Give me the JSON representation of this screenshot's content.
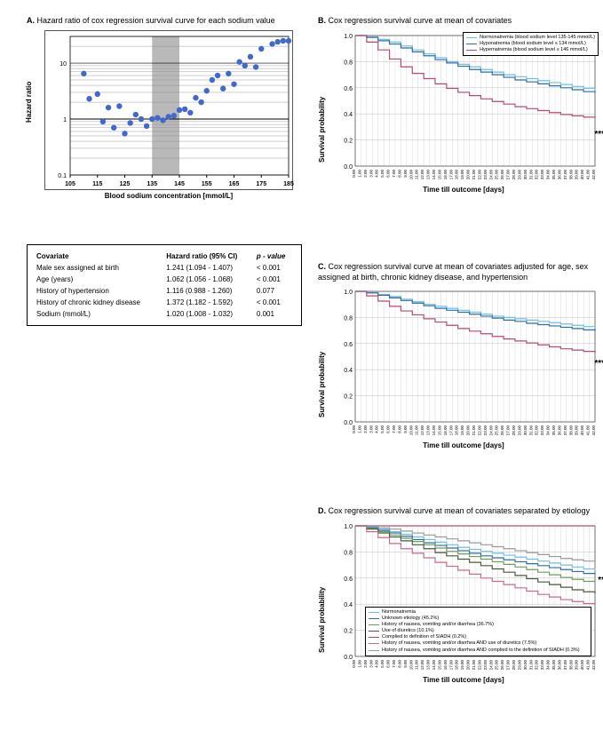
{
  "panelA": {
    "label": "A.",
    "title": "Hazard ratio of cox regression survival curve for each sodium value",
    "xlabel": "Blood sodium concentration [mmol/L]",
    "ylabel": "Hazard ratio",
    "type": "scatter",
    "yscale": "log",
    "xlim": [
      105,
      185
    ],
    "xticks": [
      105,
      115,
      125,
      135,
      145,
      155,
      165,
      175,
      185
    ],
    "yticks": [
      0.1,
      1,
      10
    ],
    "ytick_labels": [
      "0.1",
      "1",
      "10"
    ],
    "y_minor_gridlines": [
      0.2,
      0.3,
      0.4,
      0.5,
      0.6,
      0.7,
      0.8,
      0.9,
      2,
      3,
      4,
      5,
      6,
      7,
      8,
      9,
      20,
      30
    ],
    "reference_band": {
      "xmin": 135,
      "xmax": 145,
      "color": "#808080",
      "opacity": 0.55
    },
    "reference_line_y": 1,
    "marker_color": "#4169cb",
    "marker_size": 3.2,
    "grid_color": "#888888",
    "background_color": "#ffffff",
    "points_x": [
      110,
      112,
      115,
      117,
      119,
      121,
      123,
      125,
      127,
      129,
      131,
      133,
      135,
      137,
      139,
      141,
      143,
      145,
      147,
      149,
      151,
      153,
      155,
      157,
      159,
      161,
      163,
      165,
      167,
      169,
      171,
      173,
      175,
      179,
      181,
      183,
      185
    ],
    "points_y": [
      6.5,
      2.3,
      2.8,
      0.9,
      1.6,
      0.7,
      1.7,
      0.55,
      0.85,
      1.2,
      1.0,
      0.75,
      1.0,
      1.05,
      0.95,
      1.1,
      1.15,
      1.45,
      1.5,
      1.3,
      2.4,
      2.0,
      3.2,
      5.0,
      6.0,
      3.5,
      6.5,
      4.2,
      10.5,
      9.0,
      13.0,
      8.5,
      18.0,
      22.0,
      24.0,
      25.0,
      25.0
    ]
  },
  "covariate_table": {
    "columns": [
      "Covariate",
      "Hazard ratio (95% CI)",
      "p - value"
    ],
    "rows": [
      [
        "Male sex assigned at birth",
        "1.241 (1.094 - 1.407)",
        "< 0.001"
      ],
      [
        "Age (years)",
        "1.062 (1.056 - 1.068)",
        "< 0.001"
      ],
      [
        "History of hypertension",
        "1.116 (0.988 - 1.260)",
        "0.077"
      ],
      [
        "History of chronic kidney disease",
        "1.372 (1.182 - 1.592)",
        "< 0.001"
      ],
      [
        "Sodium  (mmol/L)",
        "1.020 (1.008 - 1.032)",
        "0.001"
      ]
    ]
  },
  "panelB": {
    "label": "B.",
    "title": "Cox regression survival curve at mean of covariates",
    "xlabel": "Time till outcome [days]",
    "ylabel": "Survival probability",
    "type": "survival",
    "ylim": [
      0,
      1.0
    ],
    "yticks": [
      0,
      0.2,
      0.4,
      0.6,
      0.8,
      1.0
    ],
    "xlim": [
      0,
      42
    ],
    "xtick_step": 1,
    "grid_color": "#bfbfbf",
    "background_color": "#ffffff",
    "sig": "***",
    "legend": {
      "position": "top-right",
      "items": [
        {
          "label": "Normonatremia (blood sodium level 135-145 mmol/L)",
          "color": "#6fbfe8"
        },
        {
          "label": "Hyponatremia (blood sodium level ≤ 134 mmol/L)",
          "color": "#2e6ea8"
        },
        {
          "label": "Hypernatremia (blood sodium level ≥ 146 mmol/L)",
          "color": "#b84a6a"
        }
      ]
    },
    "series": [
      {
        "color": "#6fbfe8",
        "x": [
          0,
          2,
          4,
          6,
          8,
          10,
          12,
          14,
          16,
          18,
          20,
          22,
          24,
          26,
          28,
          30,
          32,
          34,
          36,
          38,
          40,
          42
        ],
        "y": [
          1.0,
          0.99,
          0.97,
          0.95,
          0.92,
          0.89,
          0.86,
          0.83,
          0.8,
          0.78,
          0.76,
          0.74,
          0.72,
          0.7,
          0.685,
          0.67,
          0.655,
          0.64,
          0.625,
          0.61,
          0.595,
          0.585
        ]
      },
      {
        "color": "#2e6ea8",
        "x": [
          0,
          2,
          4,
          6,
          8,
          10,
          12,
          14,
          16,
          18,
          20,
          22,
          24,
          26,
          28,
          30,
          32,
          34,
          36,
          38,
          40,
          42
        ],
        "y": [
          1.0,
          0.985,
          0.96,
          0.935,
          0.905,
          0.875,
          0.845,
          0.815,
          0.79,
          0.765,
          0.74,
          0.72,
          0.7,
          0.68,
          0.66,
          0.645,
          0.63,
          0.615,
          0.6,
          0.585,
          0.57,
          0.56
        ]
      },
      {
        "color": "#b84a6a",
        "x": [
          0,
          2,
          4,
          6,
          8,
          10,
          12,
          14,
          16,
          18,
          20,
          22,
          24,
          26,
          28,
          30,
          32,
          34,
          36,
          38,
          40,
          42
        ],
        "y": [
          1.0,
          0.95,
          0.89,
          0.82,
          0.76,
          0.71,
          0.67,
          0.63,
          0.595,
          0.565,
          0.54,
          0.515,
          0.495,
          0.475,
          0.455,
          0.44,
          0.425,
          0.41,
          0.395,
          0.385,
          0.375,
          0.365
        ]
      }
    ]
  },
  "panelC": {
    "label": "C.",
    "title": "Cox regression survival curve at mean of covariates adjusted for age, sex assigned at birth, chronic kidney disease, and hypertension",
    "xlabel": "Time till outcome [days]",
    "ylabel": "Survival probability",
    "type": "survival",
    "ylim": [
      0,
      1.0
    ],
    "yticks": [
      0,
      0.2,
      0.4,
      0.6,
      0.8,
      1.0
    ],
    "xlim": [
      0,
      42
    ],
    "xtick_step": 1,
    "grid_color": "#bfbfbf",
    "background_color": "#ffffff",
    "sig": "***",
    "series": [
      {
        "color": "#6fbfe8",
        "x": [
          0,
          2,
          4,
          6,
          8,
          10,
          12,
          14,
          16,
          18,
          20,
          22,
          24,
          26,
          28,
          30,
          32,
          34,
          36,
          38,
          40,
          42
        ],
        "y": [
          1.0,
          0.99,
          0.975,
          0.96,
          0.94,
          0.92,
          0.9,
          0.885,
          0.87,
          0.855,
          0.84,
          0.825,
          0.81,
          0.8,
          0.79,
          0.78,
          0.77,
          0.76,
          0.75,
          0.74,
          0.73,
          0.72
        ]
      },
      {
        "color": "#2e6ea8",
        "x": [
          0,
          2,
          4,
          6,
          8,
          10,
          12,
          14,
          16,
          18,
          20,
          22,
          24,
          26,
          28,
          30,
          32,
          34,
          36,
          38,
          40,
          42
        ],
        "y": [
          1.0,
          0.988,
          0.97,
          0.95,
          0.93,
          0.91,
          0.89,
          0.87,
          0.855,
          0.84,
          0.825,
          0.81,
          0.795,
          0.78,
          0.77,
          0.755,
          0.745,
          0.735,
          0.725,
          0.715,
          0.705,
          0.695
        ]
      },
      {
        "color": "#b84a6a",
        "x": [
          0,
          2,
          4,
          6,
          8,
          10,
          12,
          14,
          16,
          18,
          20,
          22,
          24,
          26,
          28,
          30,
          32,
          34,
          36,
          38,
          40,
          42
        ],
        "y": [
          1.0,
          0.965,
          0.925,
          0.885,
          0.85,
          0.82,
          0.79,
          0.765,
          0.74,
          0.715,
          0.695,
          0.675,
          0.655,
          0.635,
          0.62,
          0.605,
          0.59,
          0.575,
          0.56,
          0.55,
          0.54,
          0.525
        ]
      }
    ]
  },
  "panelD": {
    "label": "D.",
    "title": "Cox regression survival curve at mean of covariates separated by etiology",
    "xlabel": "Time till outcome [days]",
    "ylabel": "Survival probability",
    "type": "survival",
    "ylim": [
      0,
      1.0
    ],
    "yticks": [
      0,
      0.2,
      0.4,
      0.6,
      0.8,
      1.0
    ],
    "xlim": [
      0,
      42
    ],
    "xtick_step": 1,
    "grid_color": "#bfbfbf",
    "background_color": "#ffffff",
    "sig": "**",
    "legend": {
      "position": "bottom-inside",
      "items": [
        {
          "label": "Normonatremia",
          "color": "#6fbfe8"
        },
        {
          "label": "Unknown etiology (45.2%)",
          "color": "#2e6ea8"
        },
        {
          "label": "History of nausea, vomiting and/or diarrhea (36.7%)",
          "color": "#6f9f55"
        },
        {
          "label": "Use of diuretics (10.1%)",
          "color": "#4a5a3a"
        },
        {
          "label": "Complied to definition of SIADH (0.2%)",
          "color": "#c04a6a"
        },
        {
          "label": "History of nausea, vomiting and/or diarrhea AND use of diuretics (7.5%)",
          "color": "#c96a8a"
        },
        {
          "label": "History of nausea, vomiting and/or diarrhea AND complied to the definition of SIADH (0.3%)",
          "color": "#9a9a9a"
        }
      ]
    },
    "series": [
      {
        "color": "#c04a6a",
        "x": [
          0,
          42
        ],
        "y": [
          1.0,
          1.0
        ]
      },
      {
        "color": "#9a9a9a",
        "x": [
          0,
          2,
          4,
          6,
          8,
          10,
          12,
          14,
          16,
          18,
          20,
          22,
          24,
          26,
          28,
          30,
          32,
          34,
          36,
          38,
          40,
          42
        ],
        "y": [
          1.0,
          0.995,
          0.985,
          0.975,
          0.96,
          0.945,
          0.93,
          0.915,
          0.9,
          0.885,
          0.87,
          0.855,
          0.84,
          0.825,
          0.81,
          0.795,
          0.78,
          0.765,
          0.75,
          0.74,
          0.73,
          0.72
        ]
      },
      {
        "color": "#6fbfe8",
        "x": [
          0,
          2,
          4,
          6,
          8,
          10,
          12,
          14,
          16,
          18,
          20,
          22,
          24,
          26,
          28,
          30,
          32,
          34,
          36,
          38,
          40,
          42
        ],
        "y": [
          1.0,
          0.99,
          0.975,
          0.955,
          0.935,
          0.915,
          0.895,
          0.875,
          0.855,
          0.835,
          0.82,
          0.805,
          0.79,
          0.775,
          0.76,
          0.745,
          0.73,
          0.715,
          0.7,
          0.685,
          0.67,
          0.66
        ]
      },
      {
        "color": "#2e6ea8",
        "x": [
          0,
          2,
          4,
          6,
          8,
          10,
          12,
          14,
          16,
          18,
          20,
          22,
          24,
          26,
          28,
          30,
          32,
          34,
          36,
          38,
          40,
          42
        ],
        "y": [
          1.0,
          0.985,
          0.965,
          0.945,
          0.92,
          0.895,
          0.87,
          0.85,
          0.83,
          0.81,
          0.79,
          0.77,
          0.755,
          0.74,
          0.725,
          0.71,
          0.695,
          0.68,
          0.665,
          0.65,
          0.635,
          0.625
        ]
      },
      {
        "color": "#6f9f55",
        "x": [
          0,
          2,
          4,
          6,
          8,
          10,
          12,
          14,
          16,
          18,
          20,
          22,
          24,
          26,
          28,
          30,
          32,
          34,
          36,
          38,
          40,
          42
        ],
        "y": [
          1.0,
          0.98,
          0.955,
          0.93,
          0.905,
          0.88,
          0.855,
          0.83,
          0.805,
          0.785,
          0.765,
          0.745,
          0.725,
          0.705,
          0.685,
          0.665,
          0.645,
          0.625,
          0.605,
          0.59,
          0.575,
          0.56
        ]
      },
      {
        "color": "#4a5a3a",
        "x": [
          0,
          2,
          4,
          6,
          8,
          10,
          12,
          14,
          16,
          18,
          20,
          22,
          24,
          26,
          28,
          30,
          32,
          34,
          36,
          38,
          40,
          42
        ],
        "y": [
          1.0,
          0.975,
          0.945,
          0.915,
          0.885,
          0.855,
          0.825,
          0.795,
          0.77,
          0.745,
          0.72,
          0.695,
          0.67,
          0.645,
          0.62,
          0.595,
          0.57,
          0.55,
          0.53,
          0.51,
          0.495,
          0.48
        ]
      },
      {
        "color": "#c96a8a",
        "x": [
          0,
          2,
          4,
          6,
          8,
          10,
          12,
          14,
          16,
          18,
          20,
          22,
          24,
          26,
          28,
          30,
          32,
          34,
          36,
          38,
          40,
          42
        ],
        "y": [
          1.0,
          0.955,
          0.91,
          0.865,
          0.825,
          0.79,
          0.755,
          0.72,
          0.69,
          0.66,
          0.63,
          0.6,
          0.575,
          0.55,
          0.525,
          0.5,
          0.475,
          0.455,
          0.435,
          0.42,
          0.405,
          0.39
        ]
      }
    ]
  }
}
